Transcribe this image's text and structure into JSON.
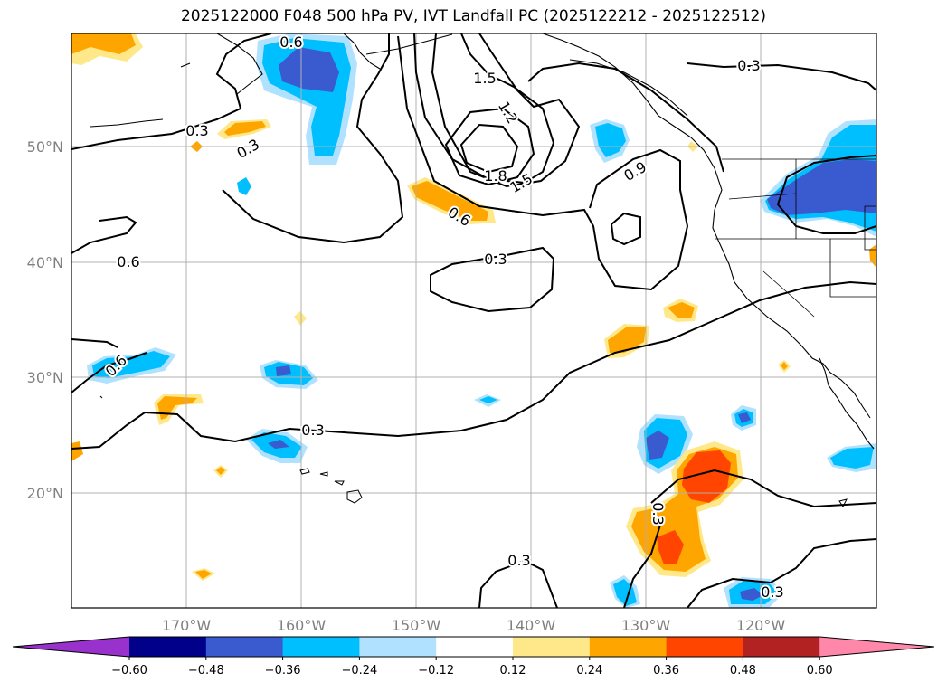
{
  "title": "2025122000 F048 500 hPa PV, IVT Landfall PC (2025122212 - 2025122512)",
  "lat_ticks": [
    "50°N",
    "40°N",
    "30°N",
    "20°N"
  ],
  "lon_ticks": [
    "170°W",
    "160°W",
    "150°W",
    "140°W",
    "130°W",
    "120°W"
  ],
  "contour_labels": [
    "0.6",
    "0.3",
    "0.3",
    "1.5",
    "1.2",
    "1.8",
    "1.5",
    "0.9",
    "0.6",
    "0.6",
    "0.3",
    "0.3",
    "0.6",
    "0.3",
    "0.3",
    "0.3",
    "0.3"
  ],
  "colorbar": {
    "ticks": [
      "−0.60",
      "−0.48",
      "−0.36",
      "−0.24",
      "−0.12",
      "0.12",
      "0.24",
      "0.36",
      "0.48",
      "0.60"
    ],
    "colors": [
      "#9932cc",
      "#00008b",
      "#3a5bd0",
      "#00bfff",
      "#b0e2ff",
      "#ffffff",
      "#ffe88a",
      "#ffa500",
      "#ff4500",
      "#b22222",
      "#ff88aa"
    ]
  }
}
